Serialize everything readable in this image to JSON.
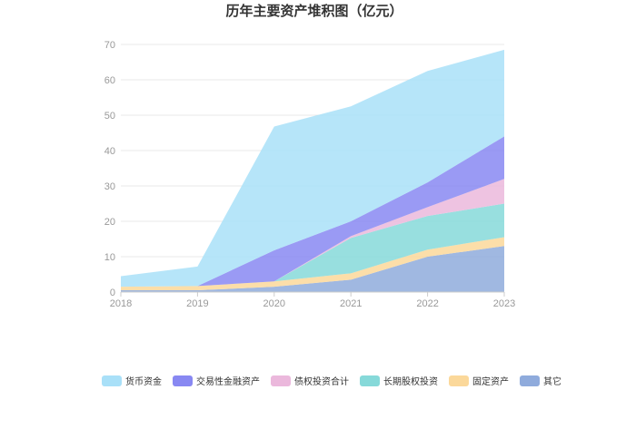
{
  "chart_data": {
    "type": "area",
    "stacked": true,
    "title": "历年主要资产堆积图（亿元）",
    "x": [
      "2018",
      "2019",
      "2020",
      "2021",
      "2022",
      "2023"
    ],
    "ylim": [
      0,
      70
    ],
    "yticks": [
      0,
      10,
      20,
      30,
      40,
      50,
      60,
      70
    ],
    "grid": true,
    "legend_position": "bottom",
    "series": [
      {
        "name": "其它",
        "color": "#8fabdc",
        "values": [
          0.5,
          0.5,
          1.5,
          3.5,
          10.0,
          13.0
        ]
      },
      {
        "name": "固定资产",
        "color": "#fbd89a",
        "values": [
          1.0,
          1.2,
          1.5,
          1.8,
          2.0,
          2.5
        ]
      },
      {
        "name": "长期股权投资",
        "color": "#86d9d9",
        "values": [
          0.0,
          0.0,
          0.0,
          10.0,
          9.5,
          9.5
        ]
      },
      {
        "name": "债权投资合计",
        "color": "#ebb8dc",
        "values": [
          0.0,
          0.0,
          0.0,
          0.5,
          2.5,
          7.0
        ]
      },
      {
        "name": "交易性金融资产",
        "color": "#8888f2",
        "values": [
          0.0,
          0.0,
          8.8,
          4.2,
          7.0,
          12.0
        ]
      },
      {
        "name": "货币资金",
        "color": "#a9e0f8",
        "values": [
          3.0,
          5.5,
          35.0,
          32.5,
          31.5,
          24.5
        ]
      }
    ],
    "legend_order": [
      "货币资金",
      "交易性金融资产",
      "债权投资合计",
      "长期股权投资",
      "固定资产",
      "其它"
    ]
  }
}
